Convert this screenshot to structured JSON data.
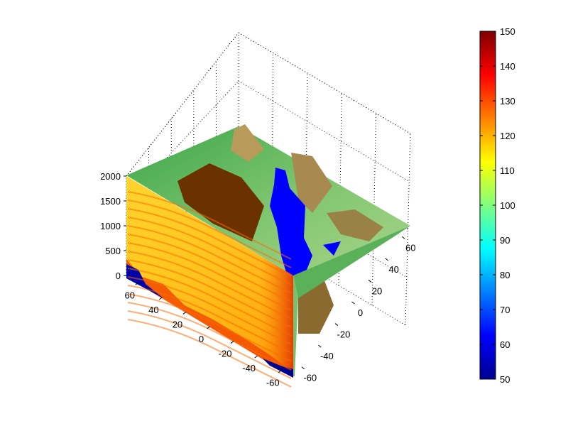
{
  "chart_data": {
    "type": "surface3d",
    "title": "",
    "xlabel": "",
    "ylabel": "",
    "zlabel": "",
    "x_ticks": [
      "60",
      "40",
      "20",
      "0",
      "-20",
      "-40",
      "-60"
    ],
    "y_ticks": [
      "60",
      "40",
      "20",
      "0",
      "-20",
      "-40",
      "-60"
    ],
    "z_ticks": [
      "0",
      "500",
      "1000",
      "1500",
      "2000"
    ],
    "xlim": [
      -70,
      70
    ],
    "ylim": [
      -70,
      70
    ],
    "zlim": [
      0,
      2000
    ],
    "grid": true,
    "colorbar": {
      "ticks": [
        "150",
        "140",
        "130",
        "120",
        "110",
        "100",
        "90",
        "80",
        "70",
        "60",
        "50"
      ],
      "range": [
        50,
        150
      ],
      "colormap": "jet",
      "placement": "right"
    },
    "layers": [
      {
        "kind": "terrain-surface",
        "colors": {
          "water": "#0000ff",
          "low": "#2fa640",
          "mid": "#c8ad6e",
          "high": "#6b3200"
        }
      },
      {
        "kind": "vertical-slice",
        "value_range": [
          50,
          150
        ],
        "dominant_value": 120
      }
    ]
  }
}
